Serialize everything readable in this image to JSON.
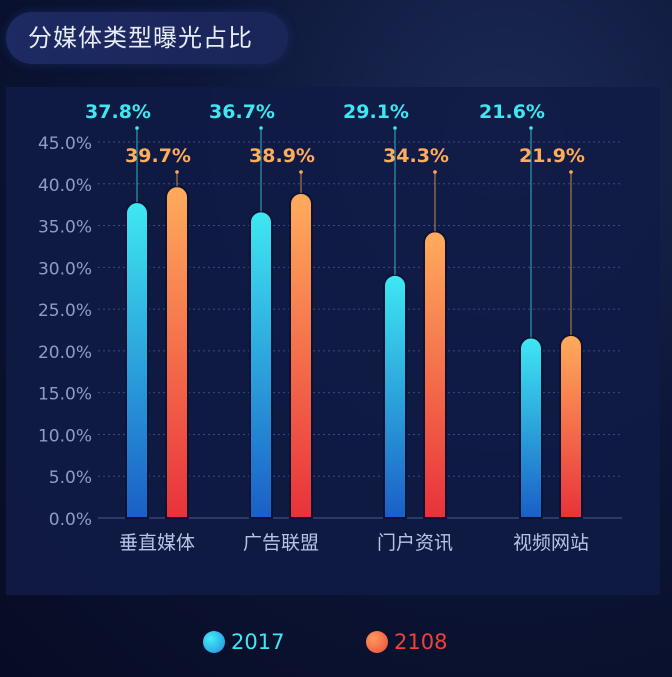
{
  "title": "分媒体类型曝光占比",
  "chart_data": {
    "type": "bar",
    "categories": [
      "垂直媒体",
      "广告联盟",
      "门户资讯",
      "视频网站"
    ],
    "series": [
      {
        "name": "2017",
        "values": [
          37.8,
          36.7,
          29.1,
          21.6
        ],
        "labels": [
          "37.8%",
          "36.7%",
          "29.1%",
          "21.6%"
        ],
        "color_top": "#3ee8f2",
        "color_bottom": "#1a5fc6",
        "label_color": "#3fe7f3"
      },
      {
        "name": "2108",
        "values": [
          39.7,
          38.9,
          34.3,
          21.9
        ],
        "labels": [
          "39.7%",
          "38.9%",
          "34.3%",
          "21.9%"
        ],
        "color_top": "#ffac5c",
        "color_bottom": "#e8323a",
        "label_color": "#ffad5a"
      }
    ],
    "ylim": [
      0,
      45
    ],
    "yticks": [
      "0.0%",
      "5.0%",
      "10.0%",
      "15.0%",
      "20.0%",
      "25.0%",
      "30.0%",
      "35.0%",
      "40.0%",
      "45.0%"
    ],
    "grid": true,
    "legend": "bottom",
    "legend_label_colors": [
      "#3fe7f3",
      "#f0403c"
    ]
  }
}
